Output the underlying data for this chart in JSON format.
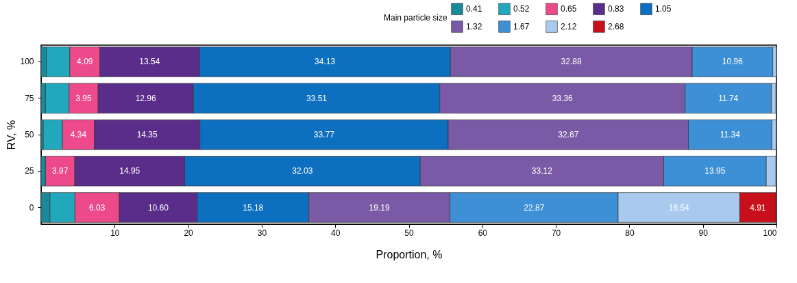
{
  "chart_data": {
    "type": "bar",
    "orientation": "horizontal",
    "stacked": true,
    "xlabel": "Proportion, %",
    "ylabel": "RV, %",
    "legend_title": "Main particle size",
    "legend": "top right",
    "categories": [
      "100",
      "75",
      "50",
      "25",
      "0"
    ],
    "xlim": [
      0,
      100
    ],
    "xticks": [
      10,
      20,
      30,
      40,
      50,
      60,
      70,
      80,
      90,
      100
    ],
    "series": [
      {
        "name": "0.41",
        "color": "#1a8a9a",
        "values": [
          0.7,
          0.6,
          0.3,
          0.6,
          1.2
        ]
      },
      {
        "name": "0.52",
        "color": "#22a8bc",
        "values": [
          3.2,
          3.2,
          2.6,
          null,
          3.4
        ],
        "value_labels": [
          null,
          null,
          null,
          null,
          null
        ]
      },
      {
        "name": "0.65",
        "color": "#ec4a8a",
        "values": [
          4.09,
          3.95,
          4.34,
          3.97,
          6.03
        ],
        "value_labels": [
          "4.09",
          "3.95",
          "4.34",
          "3.97",
          "6.03"
        ]
      },
      {
        "name": "0.83",
        "color": "#5a2d8a",
        "values": [
          13.54,
          12.96,
          14.35,
          14.95,
          10.6
        ],
        "value_labels": [
          "13.54",
          "12.96",
          "14.35",
          "14.95",
          "10.60"
        ]
      },
      {
        "name": "1.05",
        "color": "#0d6fbf",
        "values": [
          34.13,
          33.51,
          33.77,
          32.03,
          15.18
        ],
        "value_labels": [
          "34.13",
          "33.51",
          "33.77",
          "32.03",
          "15.18"
        ]
      },
      {
        "name": "1.32",
        "color": "#7a5aa6",
        "values": [
          32.88,
          33.36,
          32.67,
          33.12,
          19.19
        ],
        "value_labels": [
          "32.88",
          "33.36",
          "32.67",
          "33.12",
          "19.19"
        ]
      },
      {
        "name": "1.67",
        "color": "#3d8fd6",
        "values": [
          10.96,
          11.74,
          11.34,
          13.95,
          22.87
        ],
        "value_labels": [
          "10.96",
          "11.74",
          "11.34",
          "13.95",
          "22.87"
        ]
      },
      {
        "name": "2.12",
        "color": "#a9c9ee",
        "values": [
          0.5,
          0.6,
          0.6,
          1.3,
          16.54
        ],
        "value_labels": [
          null,
          null,
          null,
          null,
          "16.54"
        ]
      },
      {
        "name": "2.68",
        "color": "#c8101c",
        "values": [
          null,
          null,
          null,
          null,
          4.91
        ],
        "value_labels": [
          null,
          null,
          null,
          null,
          "4.91"
        ]
      }
    ]
  }
}
